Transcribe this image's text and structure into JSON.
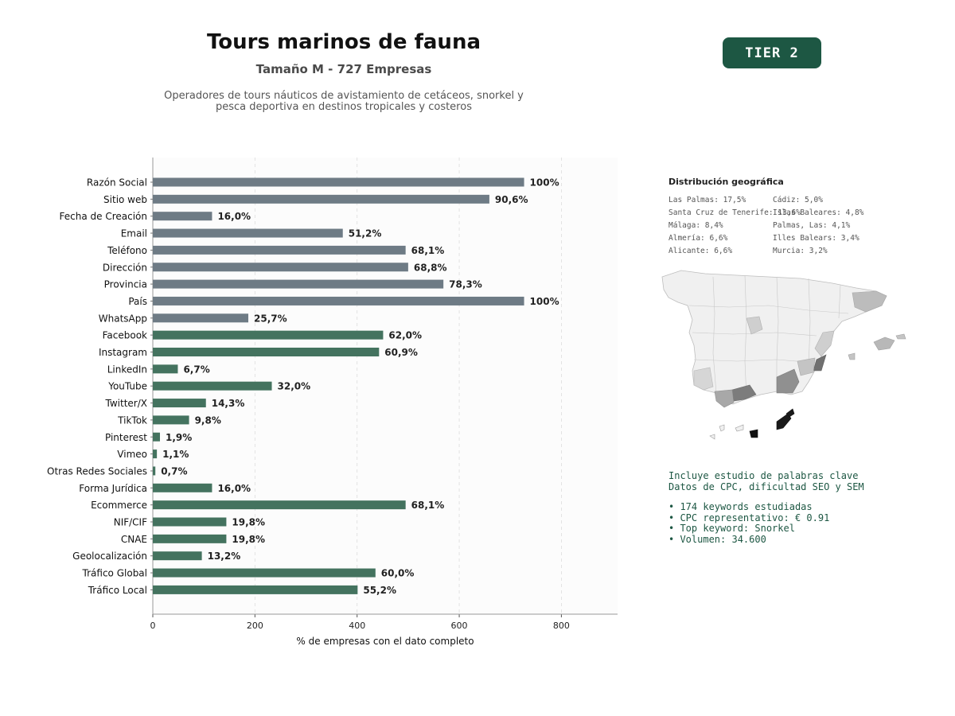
{
  "header": {
    "title": "Tours marinos de fauna",
    "subtitle": "Tamaño M - 727 Empresas",
    "description_line1": "Operadores de tours náuticos de avistamiento de cetáceos, snorkel y",
    "description_line2": "pesca deportiva en destinos tropicales y costeros",
    "tier_badge": "TIER 2"
  },
  "colors": {
    "gray_bar": "#6e7b85",
    "green_bar": "#44735f",
    "brand": "#1d5743"
  },
  "chart_data": {
    "type": "bar",
    "orientation": "horizontal",
    "xlabel": "% de empresas con el dato completo",
    "xlim": [
      0,
      910
    ],
    "xticks": [
      0,
      200,
      400,
      600,
      800
    ],
    "grid": true,
    "categories": [
      "Razón Social",
      "Sitio web",
      "Fecha de Creación",
      "Email",
      "Teléfono",
      "Dirección",
      "Provincia",
      "País",
      "WhatsApp",
      "Facebook",
      "Instagram",
      "LinkedIn",
      "YouTube",
      "Twitter/X",
      "TikTok",
      "Pinterest",
      "Vimeo",
      "Otras Redes Sociales",
      "Forma Jurídica",
      "Ecommerce",
      "NIF/CIF",
      "CNAE",
      "Geolocalización",
      "Tráfico Global",
      "Tráfico Local"
    ],
    "values": [
      727,
      659,
      116,
      372,
      495,
      500,
      569,
      727,
      187,
      451,
      443,
      49,
      233,
      104,
      71,
      14,
      8,
      5,
      116,
      495,
      144,
      144,
      96,
      436,
      401
    ],
    "labels": [
      "100%",
      "90,6%",
      "16,0%",
      "51,2%",
      "68,1%",
      "68,8%",
      "78,3%",
      "100%",
      "25,7%",
      "62,0%",
      "60,9%",
      "6,7%",
      "32,0%",
      "14,3%",
      "9,8%",
      "1,9%",
      "1,1%",
      "0,7%",
      "16,0%",
      "68,1%",
      "19,8%",
      "19,8%",
      "13,2%",
      "60,0%",
      "55,2%"
    ],
    "groups": [
      "gray",
      "gray",
      "gray",
      "gray",
      "gray",
      "gray",
      "gray",
      "gray",
      "gray",
      "green",
      "green",
      "green",
      "green",
      "green",
      "green",
      "green",
      "green",
      "green",
      "green",
      "green",
      "green",
      "green",
      "green",
      "green",
      "green"
    ]
  },
  "geo": {
    "title": "Distribución geográfica",
    "col1": [
      "Las Palmas: 17,5%",
      "Santa Cruz de Tenerife: 13,6%",
      "Málaga: 8,4%",
      "Almería: 6,6%",
      "Alicante: 6,6%"
    ],
    "col2": [
      "Cádiz: 5,0%",
      "Islas Baleares: 4,8%",
      "Palmas, Las: 4,1%",
      "Illes Balears: 3,4%",
      "Murcia: 3,2%"
    ]
  },
  "keywords": {
    "line1": "Incluye estudio de palabras clave",
    "line2": "Datos de CPC, dificultad SEO y SEM",
    "bullet1": "• 174 keywords estudiadas",
    "bullet2": "• CPC representativo: € 0.91",
    "bullet3": "• Top keyword: Snorkel",
    "bullet4": "• Volumen: 34.600"
  }
}
